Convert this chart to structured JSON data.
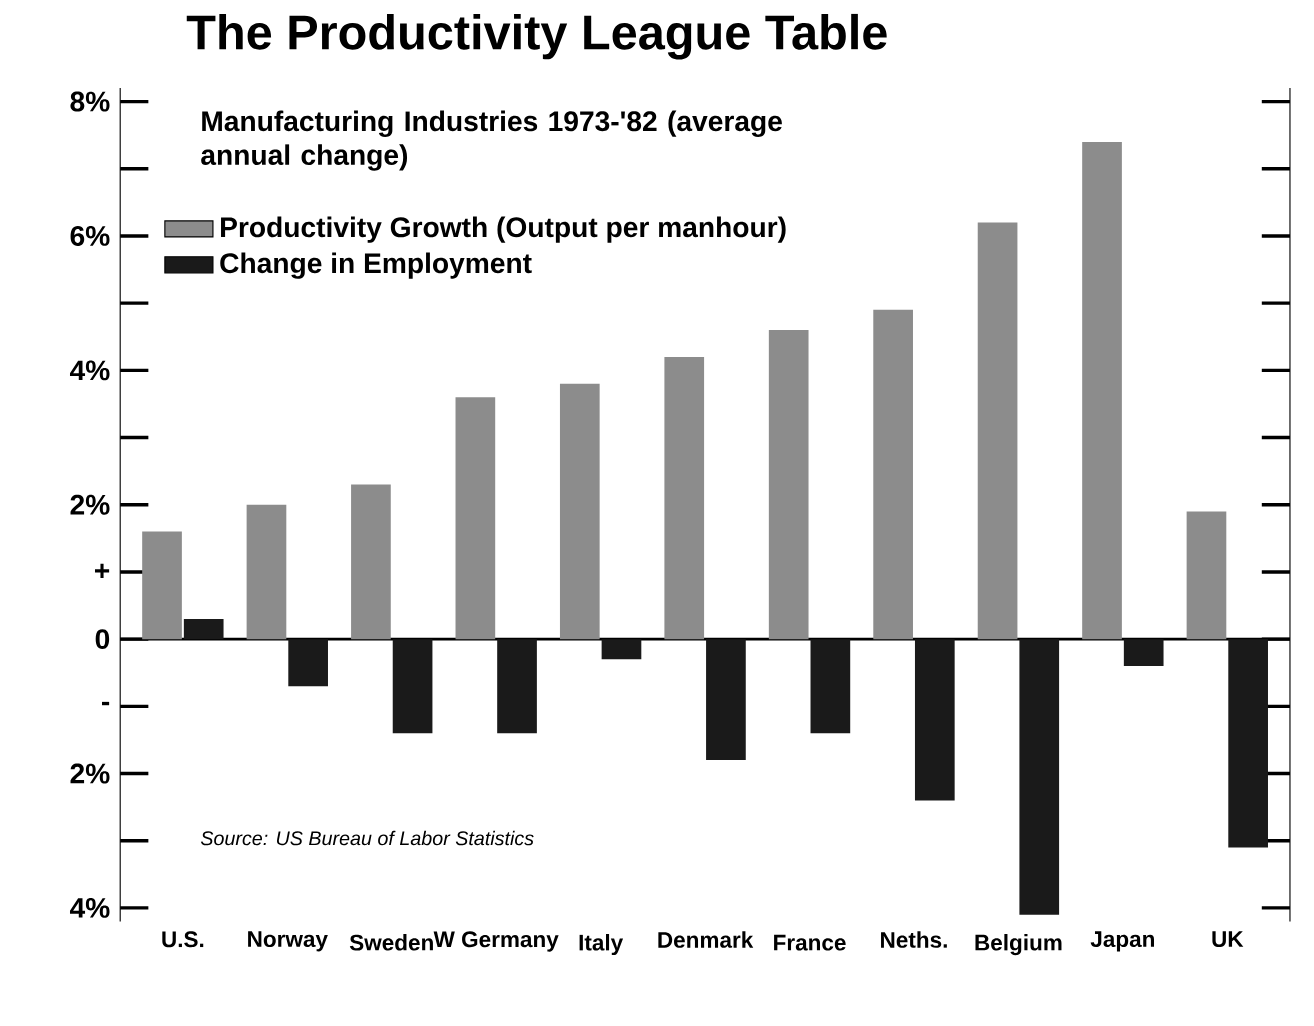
{
  "chart_data": {
    "type": "bar",
    "title": "The Productivity League Table",
    "subtitle": "Manufacturing Industries 1973-'82 (average annual change)",
    "categories": [
      "U.S.",
      "Norway",
      "Sweden",
      "W Germany",
      "Italy",
      "Denmark",
      "France",
      "Neths.",
      "Belgium",
      "Japan",
      "UK"
    ],
    "series": [
      {
        "name": "Productivity Growth (Output per manhour)",
        "color": "#8c8c8c",
        "values": [
          1.6,
          2.0,
          2.3,
          3.6,
          3.8,
          4.2,
          4.6,
          4.9,
          6.2,
          7.4,
          1.9
        ]
      },
      {
        "name": "Change in Employment",
        "color": "#1a1a1a",
        "values": [
          0.3,
          -0.7,
          -1.4,
          -1.4,
          -0.3,
          -1.8,
          -1.4,
          -2.4,
          -4.1,
          -0.4,
          -3.1
        ]
      }
    ],
    "ylim": [
      -4.2,
      8.2
    ],
    "yticks": [
      {
        "value": 8,
        "label": "8%"
      },
      {
        "value": 7,
        "label": null
      },
      {
        "value": 6,
        "label": "6%"
      },
      {
        "value": 5,
        "label": null
      },
      {
        "value": 4,
        "label": "4%"
      },
      {
        "value": 3,
        "label": null
      },
      {
        "value": 2,
        "label": "2%"
      },
      {
        "value": 1,
        "label": "+"
      },
      0,
      {
        "value": -1,
        "label": "-"
      },
      {
        "value": -2,
        "label": "2%"
      },
      {
        "value": -3,
        "label": null
      },
      {
        "value": -4,
        "label": "4%"
      }
    ],
    "legend": "top left",
    "annotations": [
      "Source: US Bureau of Labor Statistics"
    ]
  }
}
